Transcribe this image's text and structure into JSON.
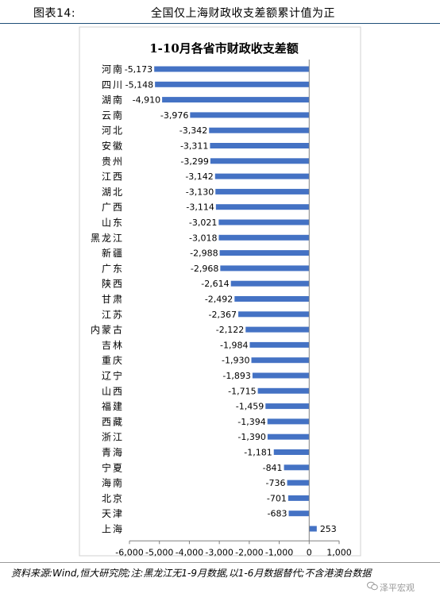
{
  "figure": {
    "label": "图表14:",
    "title": "全国仅上海财政收支差额累计值为正"
  },
  "chart_data": {
    "type": "bar",
    "orientation": "horizontal",
    "title": "1-10月各省市财政收支差额",
    "categories": [
      "河南",
      "四川",
      "湖南",
      "云南",
      "河北",
      "安徽",
      "贵州",
      "江西",
      "湖北",
      "广西",
      "山东",
      "黑龙江",
      "新疆",
      "广东",
      "陕西",
      "甘肃",
      "江苏",
      "内蒙古",
      "吉林",
      "重庆",
      "辽宁",
      "山西",
      "福建",
      "西藏",
      "浙江",
      "青海",
      "宁夏",
      "海南",
      "北京",
      "天津",
      "上海"
    ],
    "values": [
      -5173,
      -5148,
      -4910,
      -3976,
      -3342,
      -3311,
      -3299,
      -3142,
      -3130,
      -3114,
      -3021,
      -3018,
      -2988,
      -2968,
      -2614,
      -2492,
      -2367,
      -2122,
      -1984,
      -1930,
      -1893,
      -1715,
      -1459,
      -1394,
      -1390,
      -1181,
      -841,
      -736,
      -701,
      -683,
      253
    ],
    "data_labels": [
      "-5,173",
      "-5,148",
      "-4,910",
      "-3,976",
      "-3,342",
      "-3,311",
      "-3,299",
      "-3,142",
      "-3,130",
      "-3,114",
      "-3,021",
      "-3,018",
      "-2,988",
      "-2,968",
      "-2,614",
      "-2,492",
      "-2,367",
      "-2,122",
      "-1,984",
      "-1,930",
      "-1,893",
      "-1,715",
      "-1,459",
      "-1,394",
      "-1,390",
      "-1,181",
      "-841",
      "-736",
      "-701",
      "-683",
      "253"
    ],
    "xlim": [
      -6000,
      1000
    ],
    "x_ticks": [
      -6000,
      -5000,
      -4000,
      -3000,
      -2000,
      -1000,
      0,
      1000
    ],
    "x_tick_labels": [
      "-6,000",
      "-5,000",
      "-4,000",
      "-3,000",
      "-2,000",
      "-1,000",
      "0",
      "1,000"
    ],
    "bar_color": "#4472c4",
    "grid": false
  },
  "source_note": "资料来源:Wind,恒大研究院;注:黑龙江无1-9月数据,以1-6月数据替代;不含港澳台数据",
  "watermark": "泽平宏观"
}
